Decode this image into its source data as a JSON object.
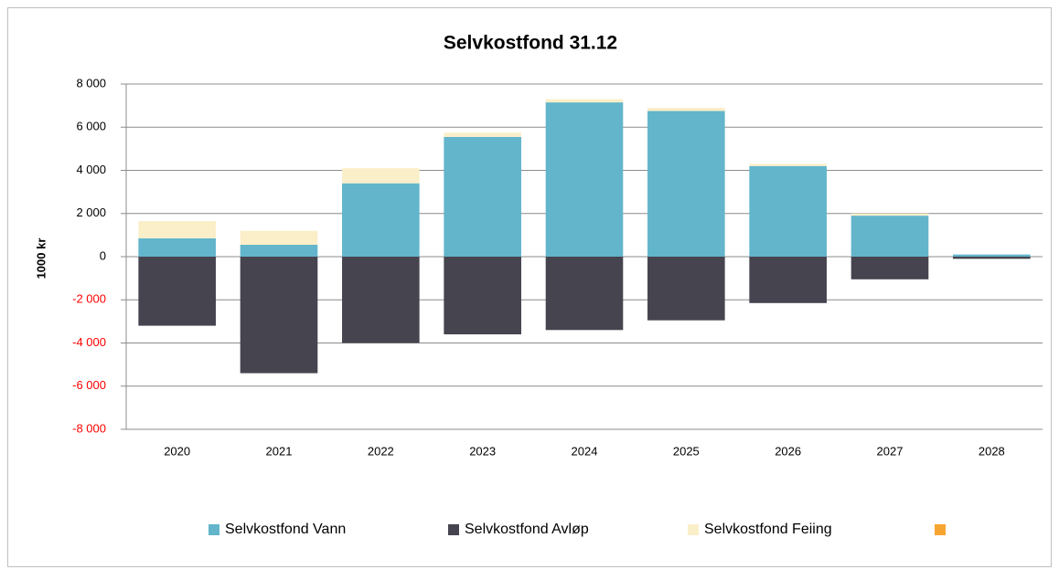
{
  "chart_data": {
    "type": "bar",
    "stacked": true,
    "title": "Selvkostfond 31.12",
    "ylabel": "1000 kr",
    "categories": [
      "2020",
      "2021",
      "2022",
      "2023",
      "2024",
      "2025",
      "2026",
      "2027",
      "2028"
    ],
    "series": [
      {
        "name": "Selvkostfond Vann",
        "color": "#62b5cb",
        "values": [
          850,
          550,
          3400,
          5550,
          7150,
          6750,
          4200,
          1900,
          100
        ]
      },
      {
        "name": "Selvkostfond Avløp",
        "color": "#46444f",
        "values": [
          -3200,
          -5400,
          -4000,
          -3600,
          -3400,
          -2950,
          -2150,
          -1050,
          -100
        ]
      },
      {
        "name": "Selvkostfond Feiing",
        "color": "#fbefc9",
        "values": [
          800,
          650,
          700,
          200,
          150,
          150,
          100,
          100,
          0
        ]
      },
      {
        "name": null,
        "color": "#f7a531",
        "values": [
          null,
          null,
          null,
          null,
          null,
          null,
          null,
          null,
          null
        ]
      }
    ],
    "ylim": [
      -8000,
      8000
    ],
    "yticks": [
      {
        "value": -8000,
        "label": "-8 000"
      },
      {
        "value": -6000,
        "label": "-6 000"
      },
      {
        "value": -4000,
        "label": "-4 000"
      },
      {
        "value": -2000,
        "label": "-2 000"
      },
      0,
      {
        "value": 2000,
        "label": "2 000"
      },
      {
        "value": 4000,
        "label": "4 000"
      },
      {
        "value": 6000,
        "label": "6 000"
      },
      {
        "value": 8000,
        "label": "8 000"
      }
    ],
    "negative_tick_color": "#ff0000",
    "grid": true,
    "legend": "bottom"
  }
}
